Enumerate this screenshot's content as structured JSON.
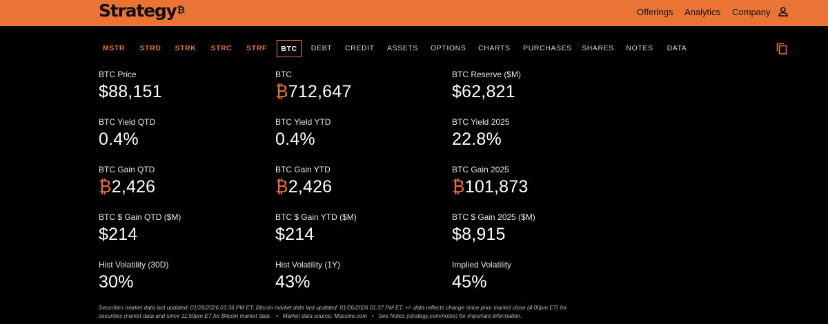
{
  "header": {
    "logo_text": "Strategy",
    "logo_mark": "₿",
    "nav": [
      "Offerings",
      "Analytics",
      "Company"
    ],
    "user_icon": "user-icon",
    "brand_color": "#ea7336"
  },
  "tabs": [
    {
      "label": "MSTR",
      "kind": "ticker"
    },
    {
      "label": "STRD",
      "kind": "ticker"
    },
    {
      "label": "STRK",
      "kind": "ticker"
    },
    {
      "label": "STRC",
      "kind": "ticker"
    },
    {
      "label": "STRF",
      "kind": "ticker"
    },
    {
      "label": "BTC",
      "kind": "active"
    },
    {
      "label": "DEBT",
      "kind": "plain"
    },
    {
      "label": "CREDIT",
      "kind": "plain"
    },
    {
      "label": "ASSETS",
      "kind": "plain"
    },
    {
      "label": "OPTIONS",
      "kind": "plain"
    },
    {
      "label": "CHARTS",
      "kind": "plain"
    },
    {
      "label": "PURCHASES",
      "kind": "plain"
    },
    {
      "label": "SHARES",
      "kind": "plain"
    },
    {
      "label": "NOTES",
      "kind": "plain"
    },
    {
      "label": "DATA",
      "kind": "plain"
    }
  ],
  "copy_icon": "copy-icon",
  "metrics": [
    [
      {
        "label": "BTC Price",
        "prefix": "",
        "value": "$88,151"
      },
      {
        "label": "BTC",
        "prefix": "₿",
        "value": "712,647"
      },
      {
        "label": "BTC Reserve ($M)",
        "prefix": "",
        "value": "$62,821"
      }
    ],
    [
      {
        "label": "BTC Yield QTD",
        "prefix": "",
        "value": "0.4%"
      },
      {
        "label": "BTC Yield YTD",
        "prefix": "",
        "value": "0.4%"
      },
      {
        "label": "BTC Yield 2025",
        "prefix": "",
        "value": "22.8%"
      }
    ],
    [
      {
        "label": "BTC Gain QTD",
        "prefix": "₿",
        "value": "2,426"
      },
      {
        "label": "BTC Gain YTD",
        "prefix": "₿",
        "value": "2,426"
      },
      {
        "label": "BTC Gain 2025",
        "prefix": "₿",
        "value": "101,873"
      }
    ],
    [
      {
        "label": "BTC $ Gain QTD ($M)",
        "prefix": "",
        "value": "$214"
      },
      {
        "label": "BTC $ Gain YTD ($M)",
        "prefix": "",
        "value": "$214"
      },
      {
        "label": "BTC $ Gain 2025 ($M)",
        "prefix": "",
        "value": "$8,915"
      }
    ],
    [
      {
        "label": "Hist Volatility (30D)",
        "prefix": "",
        "value": "30%"
      },
      {
        "label": "Hist Volatility (1Y)",
        "prefix": "",
        "value": "43%"
      },
      {
        "label": "Implied Volatility",
        "prefix": "",
        "value": "45%"
      }
    ]
  ],
  "footnote": {
    "line1": "Securities market data last updated: 01/26/2026 01:36 PM ET; Bitcoin market data last updated: 01/26/2026 01:37 PM ET. +/- data reflects change since prior market close (4:00pm ET) for",
    "line2": "securities market data and since 11:59pm ET for Bitcoin market data.   •   Market data source: Massive.com   •   See Notes (strategy.com/notes) for important information."
  }
}
